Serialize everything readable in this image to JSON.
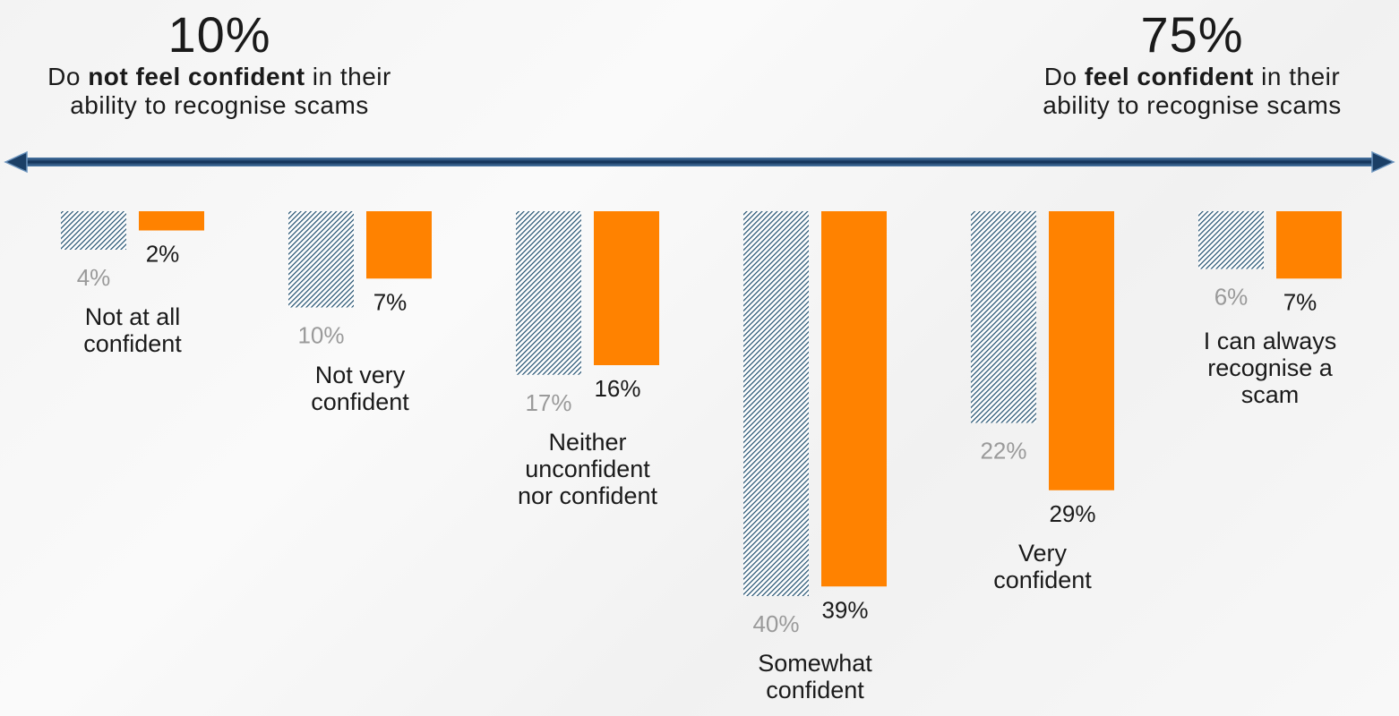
{
  "headline_left": {
    "percent": "10%",
    "text_pre": "Do ",
    "text_bold": "not feel confident",
    "text_post": " in their",
    "text_line2": "ability to recognise scams"
  },
  "headline_right": {
    "percent": "75%",
    "text_pre": "Do ",
    "text_bold": "feel confident",
    "text_post": " in their",
    "text_line2": "ability to recognise scams"
  },
  "colors": {
    "hatched_series": "#1f4e6e",
    "solid_series": "#ff8200",
    "hatched_label": "#9a9a9a",
    "solid_label": "#1a1a1a",
    "arrow": "#1b3f66"
  },
  "chart_data": {
    "type": "bar",
    "orientation": "vertical-down",
    "categories": [
      "Not at all confident",
      "Not very confident",
      "Neither unconfident nor confident",
      "Somewhat confident",
      "Very confident",
      "I can always recognise a scam"
    ],
    "category_lines": [
      [
        "Not at all",
        "confident"
      ],
      [
        "Not very",
        "confident"
      ],
      [
        "Neither",
        "unconfident",
        "nor confident"
      ],
      [
        "Somewhat",
        "confident"
      ],
      [
        "Very",
        "confident"
      ],
      [
        "I can always",
        "recognise a",
        "scam"
      ]
    ],
    "series": [
      {
        "style": "hatched",
        "values": [
          4,
          10,
          17,
          40,
          22,
          6
        ],
        "labels": [
          "4%",
          "10%",
          "17%",
          "40%",
          "22%",
          "6%"
        ]
      },
      {
        "style": "solid",
        "values": [
          2,
          7,
          16,
          39,
          29,
          7
        ],
        "labels": [
          "2%",
          "7%",
          "16%",
          "39%",
          "29%",
          "7%"
        ]
      }
    ],
    "legend": "none",
    "grid": false
  }
}
